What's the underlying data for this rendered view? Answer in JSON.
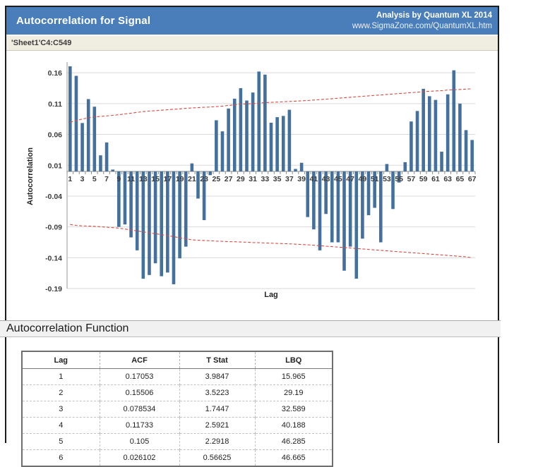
{
  "header": {
    "title": "Autocorrelation for Signal",
    "credit_line1": "Analysis by Quantum XL 2014",
    "credit_line2": "www.SigmaZone.com/QuantumXL.htm"
  },
  "range_bar": {
    "text": "'Sheet1'C4:C549"
  },
  "section": {
    "title": "Autocorrelation Function"
  },
  "chart_data": {
    "type": "bar",
    "title": "",
    "xlabel": "Lag",
    "ylabel": "Autocorrelation",
    "ylim": [
      -0.19,
      0.177
    ],
    "yticks": [
      0.16,
      0.11,
      0.06,
      0.01,
      -0.04,
      -0.09,
      -0.14,
      -0.19
    ],
    "xticks": [
      1,
      3,
      5,
      7,
      9,
      11,
      13,
      15,
      17,
      19,
      21,
      23,
      25,
      27,
      29,
      31,
      33,
      35,
      37,
      39,
      41,
      43,
      45,
      47,
      49,
      51,
      53,
      55,
      57,
      59,
      61,
      63,
      65,
      67
    ],
    "grid": true,
    "legend_position": "none",
    "bar_color": "#44709d",
    "limit_color": "#d84b40",
    "lags": [
      1,
      2,
      3,
      4,
      5,
      6,
      7,
      8,
      9,
      10,
      11,
      12,
      13,
      14,
      15,
      16,
      17,
      18,
      19,
      20,
      21,
      22,
      23,
      24,
      25,
      26,
      27,
      28,
      29,
      30,
      31,
      32,
      33,
      34,
      35,
      36,
      37,
      38,
      39,
      40,
      41,
      42,
      43,
      44,
      45,
      46,
      47,
      48,
      49,
      50,
      51,
      52,
      53,
      54,
      55,
      56,
      57,
      58,
      59,
      60,
      61,
      62,
      63,
      64,
      65,
      66,
      67
    ],
    "acf": [
      0.17053,
      0.15506,
      0.078534,
      0.11733,
      0.105,
      0.026102,
      0.047,
      0.003,
      -0.09,
      -0.086,
      -0.107,
      -0.128,
      -0.174,
      -0.168,
      -0.149,
      -0.17,
      -0.164,
      -0.183,
      -0.141,
      -0.122,
      0.013,
      -0.044,
      -0.079,
      -0.006,
      0.083,
      0.065,
      0.102,
      0.118,
      0.135,
      0.115,
      0.128,
      0.162,
      0.157,
      0.079,
      0.088,
      0.09,
      0.1,
      0.004,
      0.014,
      -0.074,
      -0.094,
      -0.128,
      -0.069,
      -0.115,
      -0.115,
      -0.161,
      -0.122,
      -0.174,
      -0.109,
      -0.071,
      -0.059,
      -0.115,
      0.012,
      -0.061,
      -0.018,
      0.015,
      0.081,
      0.098,
      0.134,
      0.122,
      0.116,
      0.032,
      0.125,
      0.164,
      0.11,
      0.067,
      0.051
    ],
    "upper_limit": [
      0.08,
      0.0825,
      0.085,
      0.087,
      0.0885,
      0.0893,
      0.09,
      0.091,
      0.092,
      0.0933,
      0.0945,
      0.0958,
      0.097,
      0.0978,
      0.0985,
      0.0993,
      0.1,
      0.1008,
      0.1015,
      0.1023,
      0.103,
      0.1035,
      0.104,
      0.1045,
      0.105,
      0.106,
      0.107,
      0.108,
      0.109,
      0.1095,
      0.11,
      0.111,
      0.1115,
      0.112,
      0.1125,
      0.113,
      0.1135,
      0.114,
      0.1145,
      0.115,
      0.1158,
      0.1165,
      0.1173,
      0.118,
      0.1188,
      0.1195,
      0.1203,
      0.121,
      0.1218,
      0.1225,
      0.1233,
      0.124,
      0.1248,
      0.1255,
      0.1263,
      0.127,
      0.1278,
      0.1285,
      0.1293,
      0.13,
      0.1305,
      0.131,
      0.132,
      0.1325,
      0.133,
      0.1335,
      0.134
    ],
    "lower_limit": [
      -0.086,
      -0.0875,
      -0.0883,
      -0.0886,
      -0.089,
      -0.0897,
      -0.0905,
      -0.0912,
      -0.092,
      -0.0935,
      -0.095,
      -0.0965,
      -0.098,
      -0.0995,
      -0.101,
      -0.1025,
      -0.104,
      -0.1058,
      -0.1075,
      -0.1093,
      -0.111,
      -0.1115,
      -0.112,
      -0.1125,
      -0.113,
      -0.1134,
      -0.1138,
      -0.1141,
      -0.1145,
      -0.1149,
      -0.1153,
      -0.1156,
      -0.116,
      -0.1164,
      -0.1168,
      -0.1171,
      -0.1175,
      -0.118,
      -0.1185,
      -0.119,
      -0.1198,
      -0.1205,
      -0.1213,
      -0.122,
      -0.1228,
      -0.1235,
      -0.1243,
      -0.125,
      -0.1258,
      -0.1265,
      -0.1273,
      -0.128,
      -0.1288,
      -0.1295,
      -0.1303,
      -0.131,
      -0.1318,
      -0.1325,
      -0.1333,
      -0.134,
      -0.1348,
      -0.1355,
      -0.1363,
      -0.137,
      -0.1378,
      -0.1385,
      -0.14
    ]
  },
  "table": {
    "headers": [
      "Lag",
      "ACF",
      "T Stat",
      "LBQ"
    ],
    "rows": [
      [
        "1",
        "0.17053",
        "3.9847",
        "15.965"
      ],
      [
        "2",
        "0.15506",
        "3.5223",
        "29.19"
      ],
      [
        "3",
        "0.078534",
        "1.7447",
        "32.589"
      ],
      [
        "4",
        "0.11733",
        "2.5921",
        "40.188"
      ],
      [
        "5",
        "0.105",
        "2.2918",
        "46.285"
      ],
      [
        "6",
        "0.026102",
        "0.56625",
        "46.665"
      ]
    ]
  }
}
